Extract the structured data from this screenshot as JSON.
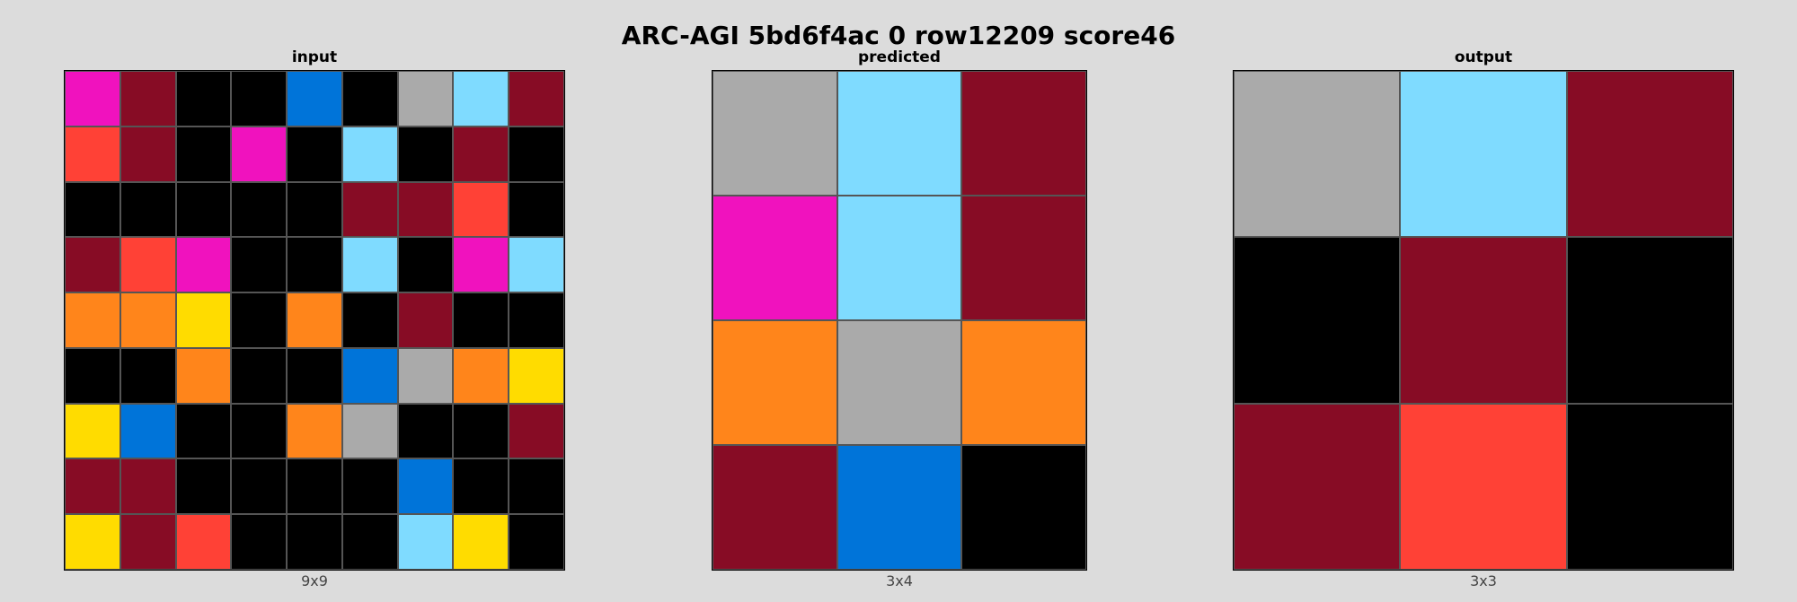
{
  "title": "ARC-AGI 5bd6f4ac 0 row12209 score46",
  "palette": {
    "0": "#000000",
    "1": "#0074d9",
    "2": "#ff4136",
    "3": "#2ecc40",
    "4": "#ffdc00",
    "5": "#aaaaaa",
    "6": "#f012be",
    "7": "#ff851b",
    "8": "#7fdbff",
    "9": "#870c25"
  },
  "panels": [
    {
      "title": "input",
      "caption": "9x9",
      "rows": [
        [
          6,
          9,
          0,
          0,
          1,
          0,
          5,
          8,
          9
        ],
        [
          2,
          9,
          0,
          6,
          0,
          8,
          0,
          9,
          0
        ],
        [
          0,
          0,
          0,
          0,
          0,
          9,
          9,
          2,
          0
        ],
        [
          9,
          2,
          6,
          0,
          0,
          8,
          0,
          6,
          8
        ],
        [
          7,
          7,
          4,
          0,
          7,
          0,
          9,
          0,
          0
        ],
        [
          0,
          0,
          7,
          0,
          0,
          1,
          5,
          7,
          4
        ],
        [
          4,
          1,
          0,
          0,
          7,
          5,
          0,
          0,
          9
        ],
        [
          9,
          9,
          0,
          0,
          0,
          0,
          1,
          0,
          0
        ],
        [
          4,
          9,
          2,
          0,
          0,
          0,
          8,
          4,
          0
        ]
      ]
    },
    {
      "title": "predicted",
      "caption": "3x4",
      "rows": [
        [
          5,
          8,
          9
        ],
        [
          6,
          8,
          9
        ],
        [
          7,
          5,
          7
        ],
        [
          9,
          1,
          0
        ]
      ]
    },
    {
      "title": "output",
      "caption": "3x3",
      "rows": [
        [
          5,
          8,
          9
        ],
        [
          0,
          9,
          0
        ],
        [
          9,
          2,
          0
        ]
      ]
    }
  ]
}
